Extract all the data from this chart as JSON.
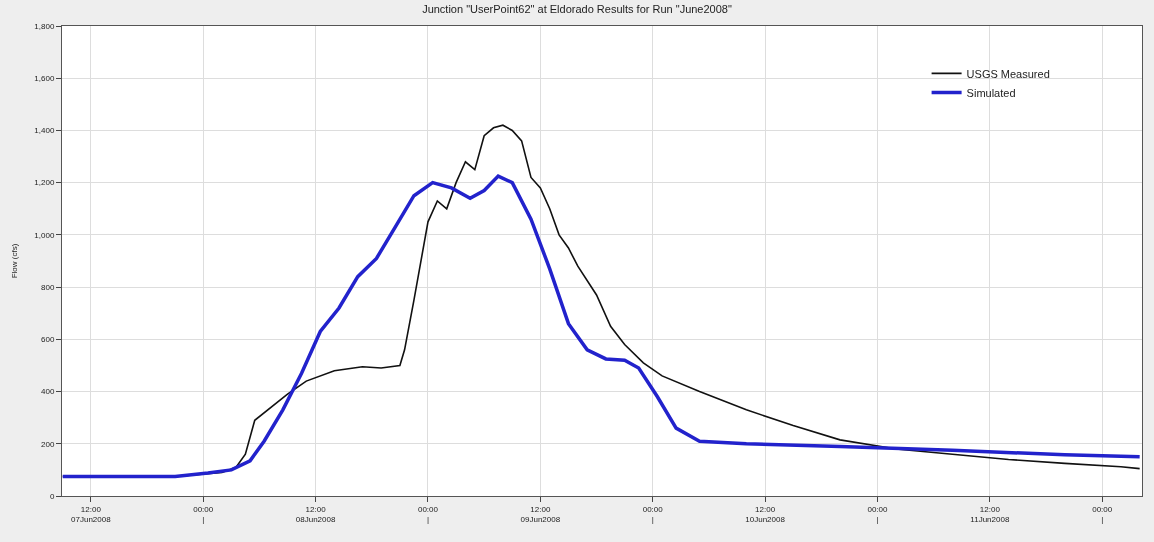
{
  "chart_data": {
    "type": "line",
    "title": "Junction \"UserPoint62\" at Eldorado Results for Run \"June2008\"",
    "ylabel": "Flow (cfs)",
    "xlim": [
      "2008-06-07T08:55",
      "2008-06-12T04:15"
    ],
    "xticks": [
      {
        "value": "2008-06-07T12:00",
        "label": "12:00\n07Jun2008"
      },
      {
        "value": "2008-06-08T00:00",
        "label": "00:00\n|"
      },
      {
        "value": "2008-06-08T12:00",
        "label": "12:00\n08Jun2008"
      },
      {
        "value": "2008-06-09T00:00",
        "label": "00:00\n|"
      },
      {
        "value": "2008-06-09T12:00",
        "label": "12:00\n09Jun2008"
      },
      {
        "value": "2008-06-10T00:00",
        "label": "00:00\n|"
      },
      {
        "value": "2008-06-10T12:00",
        "label": "12:00\n10Jun2008"
      },
      {
        "value": "2008-06-11T00:00",
        "label": "00:00\n|"
      },
      {
        "value": "2008-06-11T12:00",
        "label": "12:00\n11Jun2008"
      },
      {
        "value": "2008-06-12T00:00",
        "label": "00:00\n|"
      }
    ],
    "ylim": [
      0,
      1800
    ],
    "yticks": [
      0,
      200,
      400,
      600,
      800,
      {
        "value": 1000,
        "label": "1,000"
      },
      {
        "value": 1200,
        "label": "1,200"
      },
      {
        "value": 1400,
        "label": "1,400"
      },
      {
        "value": 1600,
        "label": "1,600"
      },
      {
        "value": 1800,
        "label": "1,800"
      }
    ],
    "grid": true,
    "legend": "top right",
    "series": [
      {
        "name": "USGS Measured",
        "color": "#111111",
        "x": [
          "2008-06-07T09:00",
          "2008-06-07T21:00",
          "2008-06-08T02:00",
          "2008-06-08T03:30",
          "2008-06-08T04:30",
          "2008-06-08T05:30",
          "2008-06-08T09:00",
          "2008-06-08T11:00",
          "2008-06-08T14:00",
          "2008-06-08T17:00",
          "2008-06-08T19:00",
          "2008-06-08T21:00",
          "2008-06-08T21:30",
          "2008-06-08T22:30",
          "2008-06-09T00:00",
          "2008-06-09T01:00",
          "2008-06-09T02:00",
          "2008-06-09T03:00",
          "2008-06-09T04:00",
          "2008-06-09T05:00",
          "2008-06-09T06:00",
          "2008-06-09T07:00",
          "2008-06-09T08:00",
          "2008-06-09T09:00",
          "2008-06-09T10:00",
          "2008-06-09T11:00",
          "2008-06-09T12:00",
          "2008-06-09T13:00",
          "2008-06-09T14:00",
          "2008-06-09T15:00",
          "2008-06-09T16:00",
          "2008-06-09T18:00",
          "2008-06-09T19:30",
          "2008-06-09T21:00",
          "2008-06-09T23:00",
          "2008-06-10T01:00",
          "2008-06-10T05:00",
          "2008-06-10T10:00",
          "2008-06-10T15:00",
          "2008-06-10T20:00",
          "2008-06-11T02:00",
          "2008-06-11T08:00",
          "2008-06-11T14:00",
          "2008-06-11T20:00",
          "2008-06-12T02:00",
          "2008-06-12T04:00"
        ],
        "values": [
          75,
          75,
          90,
          110,
          160,
          290,
          390,
          440,
          480,
          495,
          490,
          500,
          560,
          750,
          1050,
          1130,
          1100,
          1200,
          1280,
          1250,
          1380,
          1410,
          1420,
          1400,
          1360,
          1220,
          1180,
          1100,
          1000,
          950,
          880,
          770,
          650,
          580,
          510,
          460,
          400,
          330,
          270,
          215,
          180,
          160,
          140,
          125,
          112,
          105
        ]
      },
      {
        "name": "Simulated",
        "color": "#2222cc",
        "x": [
          "2008-06-07T09:00",
          "2008-06-07T21:00",
          "2008-06-08T00:30",
          "2008-06-08T03:00",
          "2008-06-08T05:00",
          "2008-06-08T06:30",
          "2008-06-08T08:30",
          "2008-06-08T10:30",
          "2008-06-08T12:30",
          "2008-06-08T14:30",
          "2008-06-08T16:30",
          "2008-06-08T18:30",
          "2008-06-08T20:30",
          "2008-06-08T22:30",
          "2008-06-09T00:30",
          "2008-06-09T02:30",
          "2008-06-09T04:30",
          "2008-06-09T06:00",
          "2008-06-09T07:30",
          "2008-06-09T09:00",
          "2008-06-09T11:00",
          "2008-06-09T13:00",
          "2008-06-09T15:00",
          "2008-06-09T17:00",
          "2008-06-09T19:00",
          "2008-06-09T21:00",
          "2008-06-09T22:30",
          "2008-06-10T00:30",
          "2008-06-10T02:30",
          "2008-06-10T05:00",
          "2008-06-10T10:00",
          "2008-06-10T20:00",
          "2008-06-11T08:00",
          "2008-06-11T20:00",
          "2008-06-12T04:00"
        ],
        "values": [
          75,
          75,
          88,
          100,
          135,
          210,
          330,
          470,
          630,
          720,
          840,
          910,
          1030,
          1150,
          1200,
          1180,
          1140,
          1170,
          1225,
          1200,
          1060,
          870,
          660,
          560,
          525,
          520,
          490,
          380,
          260,
          210,
          200,
          190,
          175,
          158,
          150
        ]
      }
    ]
  }
}
